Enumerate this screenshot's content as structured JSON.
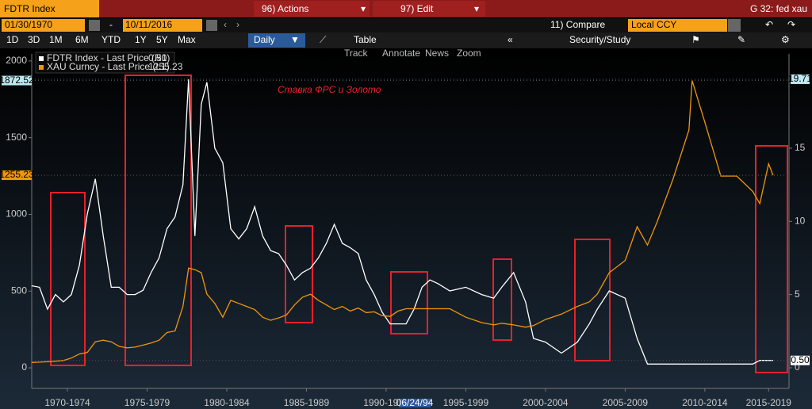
{
  "toolbar": {
    "ticker": "FDTR Index",
    "actions": "96) Actions",
    "edit": "97) Edit",
    "screen": "G 32: fed xau",
    "start_date": "01/30/1970",
    "dash": "-",
    "end_date": "10/11/2016",
    "compare": "11) Compare",
    "currency": "Local CCY",
    "periods": [
      "1D",
      "3D",
      "1M",
      "6M",
      "YTD",
      "1Y",
      "5Y",
      "Max"
    ],
    "frequency": "Daily",
    "table": "Table",
    "study": "Security/Study",
    "tools": [
      "Track",
      "Annotate",
      "News",
      "Zoom"
    ]
  },
  "chart_data": {
    "type": "line",
    "title": "Ставка ФРС и Золото",
    "cursor_date": "06/24/94",
    "x": [
      1970.25,
      1970.75,
      1971.25,
      1971.75,
      1972.25,
      1972.75,
      1973.25,
      1973.75,
      1974.25,
      1974.75,
      1975.25,
      1975.75,
      1976.25,
      1976.75,
      1977.25,
      1977.75,
      1978.25,
      1978.75,
      1979.25,
      1979.75,
      1980.1,
      1980.5,
      1980.9,
      1981.25,
      1981.75,
      1982.25,
      1982.75,
      1983.25,
      1983.75,
      1984.25,
      1984.75,
      1985.25,
      1985.75,
      1986.25,
      1986.75,
      1987.25,
      1987.75,
      1988.25,
      1988.75,
      1989.25,
      1989.75,
      1990.25,
      1990.75,
      1991.25,
      1991.75,
      1992.25,
      1992.75,
      1993.25,
      1993.75,
      1994.25,
      1994.75,
      1995.25,
      1995.75,
      1996.5,
      1997.5,
      1998.5,
      1999.25,
      1999.75,
      2000.5,
      2001.25,
      2001.75,
      2002.5,
      2003.5,
      2004.5,
      2005.25,
      2005.75,
      2006.5,
      2007.5,
      2008.25,
      2008.9,
      2009.5,
      2010.5,
      2011.5,
      2011.7,
      2012.5,
      2013.5,
      2014.5,
      2015.5,
      2015.95,
      2016.5,
      2016.78
    ],
    "series": [
      {
        "name": "FDTR Index - Last Price (R1)",
        "color": "#ffffff",
        "axis": "y2",
        "last_label": "0.50",
        "values": [
          5.6,
          5.5,
          4,
          5,
          4.5,
          5,
          7,
          10.5,
          12.9,
          9,
          5.5,
          5.5,
          5,
          5,
          5.3,
          6.5,
          7.5,
          9.5,
          10.3,
          12.5,
          19.71,
          9,
          18,
          19.5,
          15,
          14,
          9.5,
          8.8,
          9.5,
          11,
          9,
          8,
          7.8,
          7,
          6,
          6.5,
          6.8,
          7.5,
          8.5,
          9.8,
          8.5,
          8.2,
          7.8,
          6,
          5,
          3.8,
          3,
          3,
          3,
          4,
          5.5,
          6,
          5.75,
          5.25,
          5.5,
          5,
          4.75,
          5.5,
          6.5,
          4.5,
          2,
          1.75,
          1,
          1.75,
          3,
          4,
          5.25,
          4.75,
          2,
          0.25,
          0.25,
          0.25,
          0.25,
          0.25,
          0.25,
          0.25,
          0.25,
          0.25,
          0.5,
          0.5,
          0.5
        ]
      },
      {
        "name": "XAU Curncy - Last Price (L1)",
        "color": "#f0960a",
        "axis": "y",
        "values": [
          35,
          37,
          40,
          43,
          48,
          64,
          90,
          100,
          170,
          180,
          170,
          140,
          130,
          135,
          148,
          162,
          180,
          230,
          240,
          400,
          650,
          640,
          620,
          480,
          420,
          330,
          440,
          420,
          400,
          380,
          330,
          310,
          325,
          345,
          410,
          460,
          480,
          440,
          410,
          380,
          400,
          370,
          390,
          360,
          365,
          340,
          335,
          370,
          385,
          385,
          385,
          385,
          385,
          385,
          330,
          295,
          280,
          290,
          280,
          265,
          275,
          315,
          350,
          400,
          430,
          480,
          620,
          700,
          920,
          800,
          950,
          1230,
          1550,
          1872.52,
          1600,
          1250,
          1250,
          1150,
          1070,
          1330,
          1255.23
        ]
      }
    ],
    "xlim": [
      1970.26,
      2017.78
    ],
    "xticks": [
      {
        "value": 1972.5,
        "label": "1970-1974"
      },
      {
        "value": 1977.5,
        "label": "1975-1979"
      },
      {
        "value": 1982.5,
        "label": "1980-1984"
      },
      {
        "value": 1987.5,
        "label": "1985-1989"
      },
      {
        "value": 1992.5,
        "label": "1990-1994"
      },
      {
        "value": 1997.5,
        "label": "1995-1999"
      },
      {
        "value": 2002.5,
        "label": "2000-2004"
      },
      {
        "value": 2007.5,
        "label": "2005-2009"
      },
      {
        "value": 2012.5,
        "label": "2010-2014"
      },
      {
        "value": 2016.5,
        "label": "2015-2019"
      }
    ],
    "ylim": [
      -134,
      2046
    ],
    "yticks": [
      0,
      500,
      1000,
      1500,
      2000
    ],
    "y2lim": [
      -1.41,
      21.44
    ],
    "y2ticks": [
      0,
      5,
      10,
      15
    ]
  }
}
